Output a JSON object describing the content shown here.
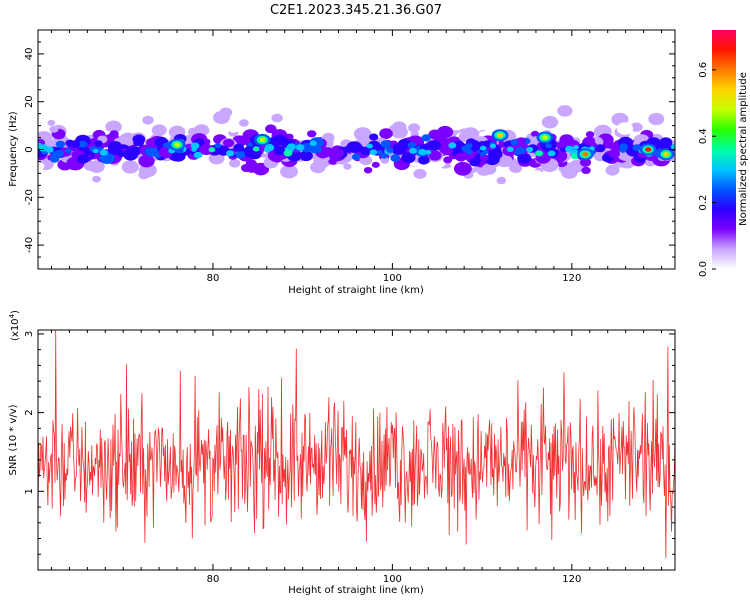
{
  "title": "C2E1.2023.345.21.36.G07",
  "chart_data": [
    {
      "type": "heatmap",
      "xlabel": "Height of straight line (km)",
      "ylabel": "Frequency (Hz)",
      "xlim": [
        60.5,
        131.5
      ],
      "ylim": [
        -50,
        50
      ],
      "x_ticks": [
        80,
        100,
        120
      ],
      "y_ticks": [
        -40,
        -20,
        0,
        20,
        40
      ],
      "colorbar": {
        "label": "Normalized spectral amplitude",
        "range": [
          0,
          0.72
        ],
        "ticks": [
          "0.0",
          "0.2",
          "0.4",
          "0.6"
        ],
        "colors": [
          "#ffffff",
          "#c9a6ff",
          "#7b00ff",
          "#2a00ff",
          "#0057ff",
          "#00c8ff",
          "#00ffa0",
          "#2aff00",
          "#c8ff00",
          "#ffd400",
          "#ff7a00",
          "#ff1400",
          "#ff0060"
        ]
      },
      "band": {
        "center_hz": 0,
        "core_halfwidth_hz": 6,
        "spread_hz": 20,
        "hotspots": [
          {
            "x": 76,
            "y": 2,
            "amplitude": 0.45
          },
          {
            "x": 85.5,
            "y": 4,
            "amplitude": 0.5
          },
          {
            "x": 112,
            "y": 6,
            "amplitude": 0.55
          },
          {
            "x": 117,
            "y": 5,
            "amplitude": 0.5
          },
          {
            "x": 121.5,
            "y": -2,
            "amplitude": 0.6
          },
          {
            "x": 128.5,
            "y": 0,
            "amplitude": 0.68
          },
          {
            "x": 130.5,
            "y": -2,
            "amplitude": 0.55
          }
        ]
      }
    },
    {
      "type": "line",
      "xlabel": "Height of straight line (km)",
      "ylabel": "SNR (10 * v/v)",
      "multiplier": "(x10^4)",
      "multiplier_base": "(x10",
      "multiplier_exp": "4",
      "multiplier_close": ")",
      "xlim": [
        60.5,
        131.5
      ],
      "ylim": [
        0,
        3.05
      ],
      "x_ticks": [
        80,
        100,
        120
      ],
      "y_ticks": [
        1,
        2,
        3
      ],
      "color": "#f03030",
      "series_summary": {
        "mean": 1.35,
        "typical_min": 0.4,
        "typical_max": 2.6,
        "peak": {
          "x": 62.5,
          "y": 3.05
        }
      }
    }
  ]
}
